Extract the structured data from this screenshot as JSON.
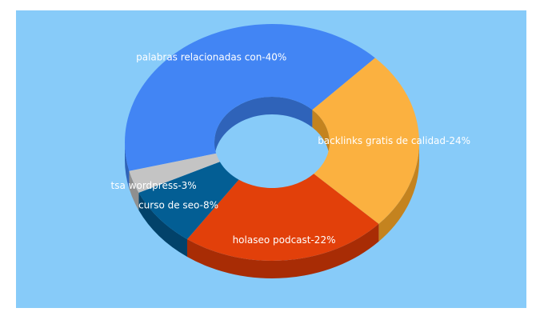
{
  "chart_data": {
    "type": "pie",
    "style": "3d-donut",
    "slices": [
      {
        "label": "palabras relacionadas con",
        "value": 40,
        "display": "palabras relacionadas con-40%",
        "color": "#4285f4",
        "side": "#2f63b9"
      },
      {
        "label": "backlinks gratis de calidad",
        "value": 24,
        "display": "backlinks gratis de calidad-24%",
        "color": "#fbb140",
        "side": "#c4831f"
      },
      {
        "label": "holaseo podcast",
        "value": 22,
        "display": "holaseo podcast-22%",
        "color": "#e2400a",
        "side": "#a82c05"
      },
      {
        "label": "curso de seo",
        "value": 8,
        "display": "curso de seo-8%",
        "color": "#035e94",
        "side": "#02426a"
      },
      {
        "label": "tsa wordpress",
        "value": 3,
        "display": "tsa wordpress-3%",
        "color": "#c4c4c4",
        "side": "#8f8f8f"
      }
    ],
    "legend": "none",
    "labels": "on-slices"
  }
}
